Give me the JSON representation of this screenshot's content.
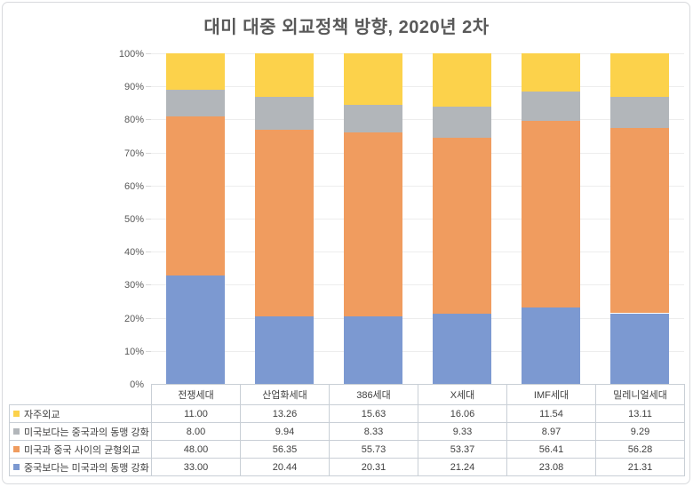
{
  "title": "대미 대중 외교정책 방향, 2020년 2차",
  "chart_data": {
    "type": "bar",
    "subtype": "stacked-100-percent-column",
    "title": "대미 대중 외교정책 방향, 2020년 2차",
    "categories": [
      "전쟁세대",
      "산업화세대",
      "386세대",
      "X세대",
      "IMF세대",
      "밀레니얼세대"
    ],
    "series": [
      {
        "name": "중국보다는 미국과의 동맹 강화",
        "color": "#7c99d1",
        "values": [
          33.0,
          20.44,
          20.31,
          21.24,
          23.08,
          21.31
        ]
      },
      {
        "name": "미국과 중국 사이의 균형외교",
        "color": "#f09c5f",
        "values": [
          48.0,
          56.35,
          55.73,
          53.37,
          56.41,
          56.28
        ]
      },
      {
        "name": "미국보다는 중국과의 동맹 강화",
        "color": "#b2b6ba",
        "values": [
          8.0,
          9.94,
          8.33,
          9.33,
          8.97,
          9.29
        ]
      },
      {
        "name": "자주외교",
        "color": "#fcd24b",
        "values": [
          11.0,
          13.26,
          15.63,
          16.06,
          11.54,
          13.11
        ]
      }
    ],
    "xlabel": "",
    "ylabel": "",
    "ylim": [
      0,
      100
    ],
    "yticks": [
      "0%",
      "10%",
      "20%",
      "30%",
      "40%",
      "50%",
      "60%",
      "70%",
      "80%",
      "90%",
      "100%"
    ],
    "grid": "horizontal",
    "legend_position": "data-table-left"
  },
  "data_table": {
    "column_headers": [
      "전쟁세대",
      "산업화세대",
      "386세대",
      "X세대",
      "IMF세대",
      "밀레니얼세대"
    ],
    "rows": [
      {
        "label": "자주외교",
        "swatch_color": "#fcd24b",
        "values": [
          "11.00",
          "13.26",
          "15.63",
          "16.06",
          "11.54",
          "13.11"
        ]
      },
      {
        "label": "미국보다는 중국과의 동맹 강화",
        "swatch_color": "#b2b6ba",
        "values": [
          "8.00",
          "9.94",
          "8.33",
          "9.33",
          "8.97",
          "9.29"
        ]
      },
      {
        "label": "미국과 중국 사이의 균형외교",
        "swatch_color": "#f09c5f",
        "values": [
          "48.00",
          "56.35",
          "55.73",
          "53.37",
          "56.41",
          "56.28"
        ]
      },
      {
        "label": "중국보다는 미국과의 동맹 강화",
        "swatch_color": "#7c99d1",
        "values": [
          "33.00",
          "20.44",
          "20.31",
          "21.24",
          "23.08",
          "21.31"
        ]
      }
    ]
  },
  "colors": {
    "title_text": "#595959",
    "axis_text": "#595959",
    "table_text": "#404040",
    "gridline": "#ededed",
    "table_border": "#c9cfd6",
    "frame_border": "#d8dadd",
    "background": "#ffffff"
  }
}
